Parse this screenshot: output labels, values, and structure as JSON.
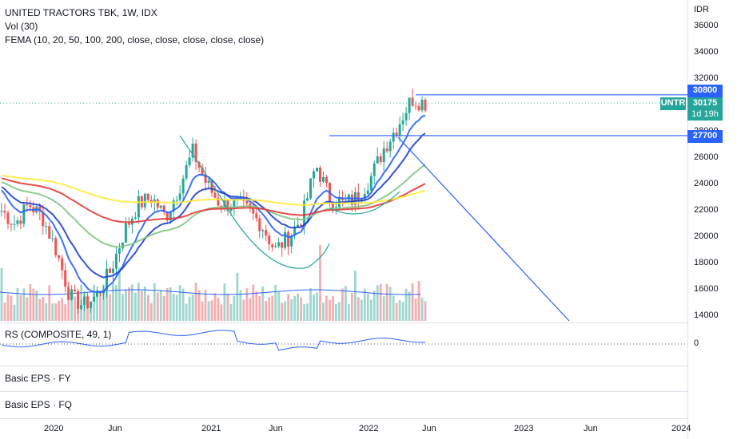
{
  "header": {
    "title": "UNITED TRACTORS TBK, 1W, IDX",
    "vol_label": "Vol (30)",
    "fema_label": "FEMA (10, 20, 50, 100, 200, close, close, close, close, close)"
  },
  "price_axis": {
    "currency": "IDR",
    "ticks": [
      "36000",
      "34000",
      "32000",
      "30000",
      "28000",
      "26000",
      "24000",
      "22000",
      "20000",
      "18000",
      "16000",
      "14000"
    ]
  },
  "tags": {
    "resistance": "30800",
    "symbol": "UNTR",
    "last_price": "30175",
    "countdown": "1d 19h",
    "support": "27700"
  },
  "rs_pane": {
    "label": "RS (COMPOSITE, 49, 1)",
    "zero": "0"
  },
  "eps_fy": {
    "label": "Basic EPS · FY"
  },
  "eps_fq": {
    "label": "Basic EPS · FQ"
  },
  "time_axis": {
    "ticks": [
      "2020",
      "Jun",
      "2021",
      "Jun",
      "2022",
      "Jun",
      "2023",
      "Jun",
      "2024"
    ]
  },
  "colors": {
    "up": "#26a69a",
    "down": "#ef5350",
    "accent": "#2962ff",
    "ema10": "#2962ff",
    "ema20": "#1e3fd0",
    "ema50": "#81c784",
    "ema100": "#e53935",
    "ema200": "#ffeb3b"
  },
  "chart_data": {
    "type": "line",
    "title": "UNITED TRACTORS TBK, 1W, IDX",
    "ylabel": "IDR",
    "ylim": [
      13000,
      37000
    ],
    "x": [
      "2019-10",
      "2019-11",
      "2019-12",
      "2020-01",
      "2020-02",
      "2020-03",
      "2020-04",
      "2020-05",
      "2020-06",
      "2020-07",
      "2020-08",
      "2020-09",
      "2020-10",
      "2020-11",
      "2020-12",
      "2021-01",
      "2021-02",
      "2021-03",
      "2021-04",
      "2021-05",
      "2021-06",
      "2021-07",
      "2021-08",
      "2021-09",
      "2021-10",
      "2021-11",
      "2021-12",
      "2022-01",
      "2022-02",
      "2022-03",
      "2022-04",
      "2022-05"
    ],
    "series": [
      {
        "name": "Close",
        "values": [
          22000,
          21000,
          22500,
          21500,
          19000,
          15500,
          14800,
          15600,
          17500,
          20500,
          22500,
          23000,
          21500,
          23800,
          26500,
          24000,
          22500,
          22500,
          22000,
          21000,
          19000,
          20000,
          21500,
          25500,
          23000,
          22500,
          23000,
          24500,
          26800,
          28500,
          30500,
          30175
        ]
      }
    ],
    "horizontal_levels": [
      30800,
      27700
    ],
    "volume_label": "Vol (30)",
    "rs_label": "RS (COMPOSITE, 49, 1)"
  }
}
